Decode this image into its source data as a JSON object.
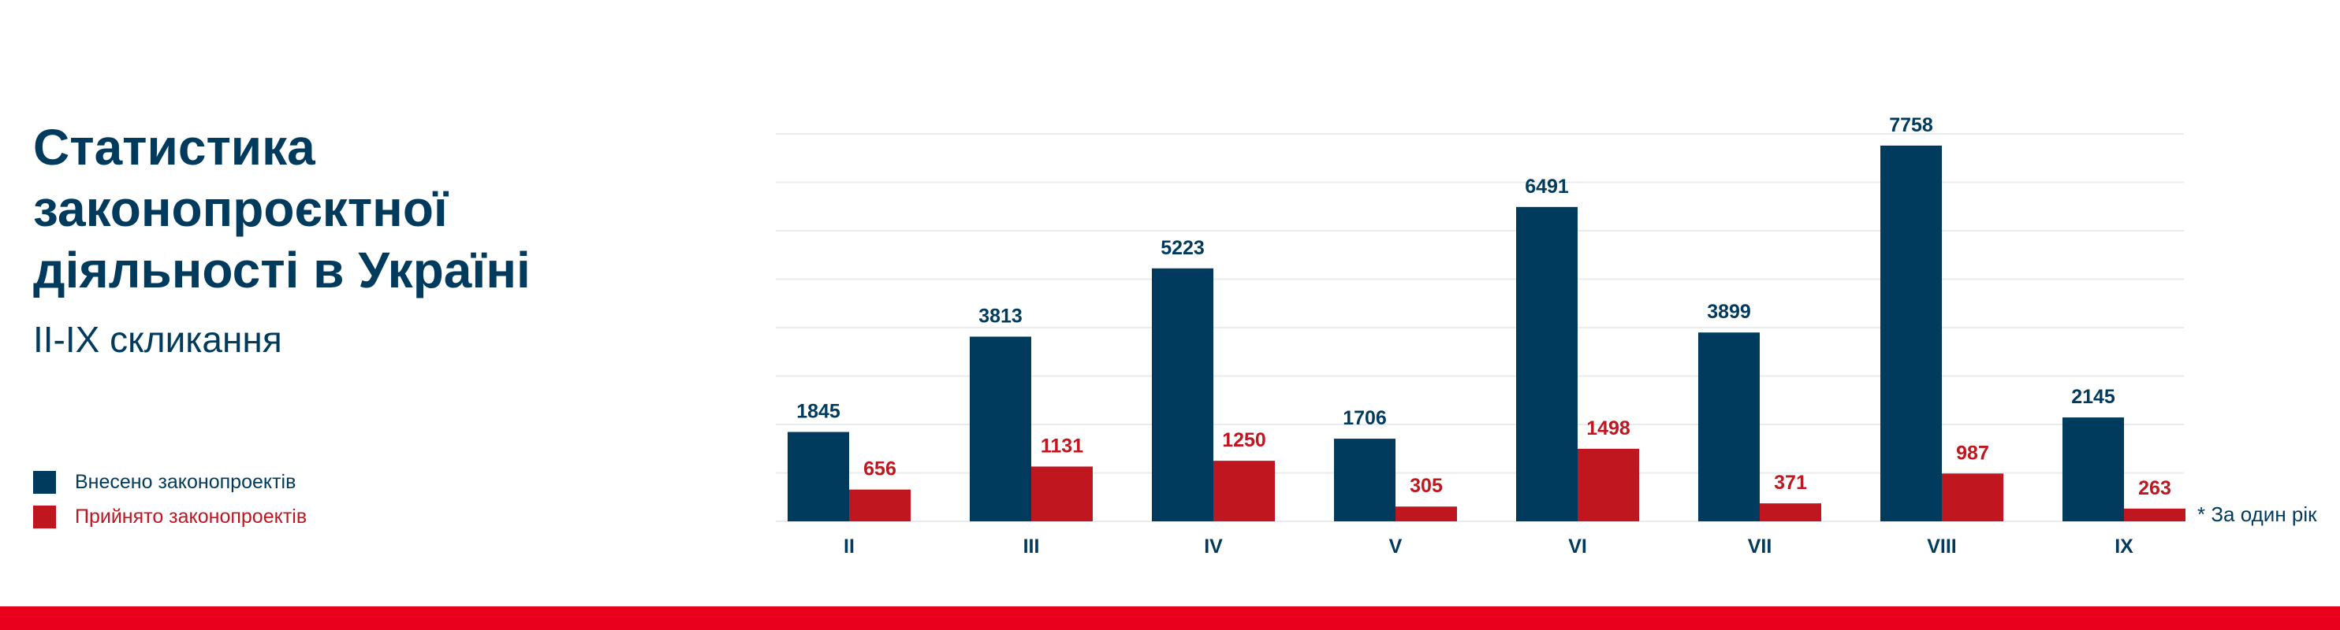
{
  "title_lines": [
    "Статистика",
    "законопроєктної",
    "діяльності в Україні"
  ],
  "subtitle": "II-IX скликання",
  "colors": {
    "submitted": "#003a5d",
    "adopted": "#c0161f",
    "accent_bar": "#e8001c",
    "grid": "#e9ecef"
  },
  "footnote": "* За один рік",
  "chart_data": {
    "type": "bar",
    "title": "Статистика законопроєктної діяльності в Україні",
    "subtitle": "II-IX скликання",
    "categories": [
      "II",
      "III",
      "IV",
      "V",
      "VI",
      "VII",
      "VIII",
      "IX"
    ],
    "series": [
      {
        "name": "Внесено законопроектів",
        "values": [
          1845,
          3813,
          5223,
          1706,
          6491,
          3899,
          7758,
          2145
        ]
      },
      {
        "name": "Прийнято законопроектів",
        "values": [
          656,
          1131,
          1250,
          305,
          1498,
          371,
          987,
          263
        ]
      }
    ],
    "ylim": [
      0,
      8000
    ],
    "grid_step": 1000,
    "grid": true,
    "y_tick_labels_shown": false,
    "legend_position": "bottom-left",
    "annotation": "* За один рік (IX)"
  }
}
